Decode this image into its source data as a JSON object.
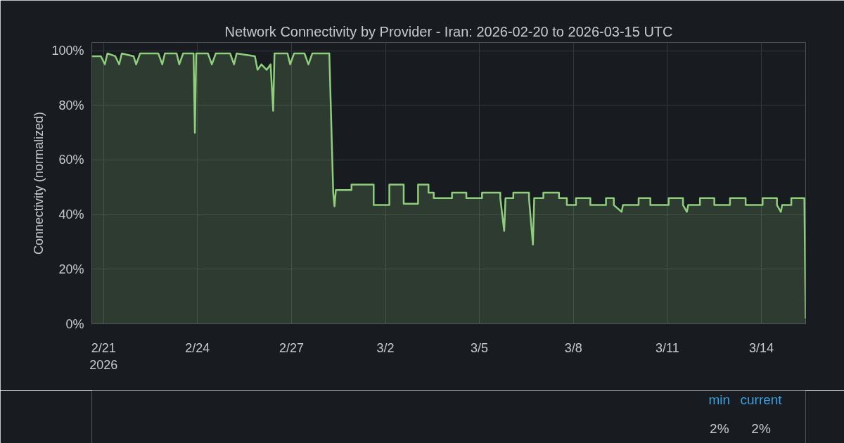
{
  "chart_data": {
    "type": "area",
    "title": "Network Connectivity by Provider - Iran: 2026-02-20 to 2026-03-15 UTC",
    "ylabel": "Connectivity (normalized)",
    "xlim": [
      "2026-02-20T15:00",
      "2026-03-15T10:00"
    ],
    "xticks": [
      {
        "value": "2026-02-21",
        "label": "2/21\n2026"
      },
      {
        "value": "2026-02-24",
        "label": "2/24"
      },
      {
        "value": "2026-02-27",
        "label": "2/27"
      },
      {
        "value": "2026-03-02",
        "label": "3/2"
      },
      {
        "value": "2026-03-05",
        "label": "3/5"
      },
      {
        "value": "2026-03-08",
        "label": "3/8"
      },
      {
        "value": "2026-03-11",
        "label": "3/11"
      },
      {
        "value": "2026-03-14",
        "label": "3/14"
      }
    ],
    "ylim": [
      0,
      103
    ],
    "yticks": [
      {
        "value": 0,
        "label": "0%"
      },
      {
        "value": 20,
        "label": "20%"
      },
      {
        "value": 40,
        "label": "40%"
      },
      {
        "value": 60,
        "label": "60%"
      },
      {
        "value": 80,
        "label": "80%"
      },
      {
        "value": 100,
        "label": "100%"
      }
    ],
    "grid": true,
    "annotations": [
      "min",
      "current",
      "2%",
      "2%"
    ],
    "series": [
      {
        "color": "#8fce7d",
        "x": [
          "2026-02-20T15:00",
          "2026-02-20T22:00",
          "2026-02-21T01:00",
          "2026-02-21T03:00",
          "2026-02-21T09:00",
          "2026-02-21T12:00",
          "2026-02-21T14:00",
          "2026-02-21T23:00",
          "2026-02-22T01:00",
          "2026-02-22T04:00",
          "2026-02-22T18:00",
          "2026-02-22T21:00",
          "2026-02-22T23:00",
          "2026-02-23T08:00",
          "2026-02-23T10:00",
          "2026-02-23T13:00",
          "2026-02-23T21:00",
          "2026-02-23T22:00",
          "2026-02-23T23:00",
          "2026-02-24T08:00",
          "2026-02-24T11:00",
          "2026-02-24T14:00",
          "2026-02-25T01:00",
          "2026-02-25T04:00",
          "2026-02-25T06:00",
          "2026-02-25T20:00",
          "2026-02-25T22:00",
          "2026-02-26T01:00",
          "2026-02-26T05:00",
          "2026-02-26T08:00",
          "2026-02-26T10:00",
          "2026-02-26T11:00",
          "2026-02-26T21:00",
          "2026-02-26T23:00",
          "2026-02-27T02:00",
          "2026-02-27T10:00",
          "2026-02-27T13:00",
          "2026-02-27T16:00",
          "2026-02-28T05:00",
          "2026-02-28T08:00",
          "2026-02-28T09:00",
          "2026-02-28T10:00",
          "2026-02-28T22:00",
          "2026-02-28T22:00",
          "2026-03-01T15:00",
          "2026-03-01T15:00",
          "2026-03-02T03:00",
          "2026-03-02T03:00",
          "2026-03-02T14:00",
          "2026-03-02T14:00",
          "2026-03-03T01:00",
          "2026-03-03T01:00",
          "2026-03-03T09:00",
          "2026-03-03T09:00",
          "2026-03-03T13:00",
          "2026-03-03T13:00",
          "2026-03-04T03:00",
          "2026-03-04T03:00",
          "2026-03-04T14:00",
          "2026-03-04T14:00",
          "2026-03-05T02:00",
          "2026-03-05T02:00",
          "2026-03-05T16:00",
          "2026-03-05T16:00",
          "2026-03-05T19:00",
          "2026-03-05T20:00",
          "2026-03-06T02:00",
          "2026-03-06T02:00",
          "2026-03-06T14:00",
          "2026-03-06T14:00",
          "2026-03-06T17:00",
          "2026-03-06T18:00",
          "2026-03-07T01:00",
          "2026-03-07T01:00",
          "2026-03-07T13:00",
          "2026-03-07T13:00",
          "2026-03-07T19:00",
          "2026-03-07T19:00",
          "2026-03-08T02:00",
          "2026-03-08T02:00",
          "2026-03-08T13:00",
          "2026-03-08T13:00",
          "2026-03-09T01:00",
          "2026-03-09T01:00",
          "2026-03-09T07:00",
          "2026-03-09T07:00",
          "2026-03-09T13:00",
          "2026-03-09T14:00",
          "2026-03-10T02:00",
          "2026-03-10T02:00",
          "2026-03-10T11:00",
          "2026-03-10T11:00",
          "2026-03-11T01:00",
          "2026-03-11T01:00",
          "2026-03-11T12:00",
          "2026-03-11T12:00",
          "2026-03-11T15:00",
          "2026-03-11T16:00",
          "2026-03-12T01:00",
          "2026-03-12T01:00",
          "2026-03-12T12:00",
          "2026-03-12T12:00",
          "2026-03-13T00:00",
          "2026-03-13T00:00",
          "2026-03-13T12:00",
          "2026-03-13T12:00",
          "2026-03-14T01:00",
          "2026-03-14T01:00",
          "2026-03-14T12:00",
          "2026-03-14T12:00",
          "2026-03-14T15:00",
          "2026-03-14T16:00",
          "2026-03-14T23:00",
          "2026-03-14T23:00",
          "2026-03-15T09:00",
          "2026-03-15T10:00"
        ],
        "values": [
          98,
          98,
          95,
          99,
          98,
          95,
          99,
          98,
          95,
          99,
          99,
          95,
          99,
          99,
          95,
          99,
          99,
          70,
          99,
          99,
          95,
          99,
          99,
          95,
          99,
          98,
          93,
          95,
          93,
          95,
          78,
          99,
          99,
          95,
          99,
          99,
          95,
          99,
          99,
          48,
          43,
          49,
          49,
          51,
          51,
          43.5,
          43.5,
          51,
          51,
          44,
          44,
          51,
          51,
          48,
          48,
          46,
          46,
          48,
          48,
          46,
          46,
          48,
          48,
          46,
          34,
          46,
          46,
          48,
          48,
          46,
          29,
          46,
          46,
          48,
          48,
          46,
          46,
          43.5,
          43.5,
          46,
          46,
          43.5,
          43.5,
          46,
          46,
          43.5,
          41,
          43.5,
          43.5,
          46,
          46,
          43.5,
          43.5,
          46,
          46,
          43.5,
          41,
          43.5,
          43.5,
          46,
          46,
          43.5,
          43.5,
          46,
          46,
          43.5,
          43.5,
          46,
          46,
          43.5,
          41,
          43.5,
          43.5,
          46,
          46,
          2
        ]
      }
    ]
  }
}
